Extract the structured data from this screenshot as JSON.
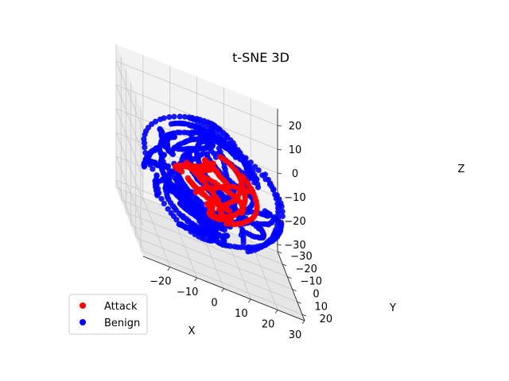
{
  "chart_data": {
    "type": "scatter",
    "projection": "3d",
    "title": "t-SNE 3D",
    "xlabel": "X",
    "ylabel": "Y",
    "zlabel": "Z",
    "xlim": [
      -30,
      30
    ],
    "ylim": [
      -30,
      25
    ],
    "zlim": [
      -33,
      27
    ],
    "xticks": [
      -20,
      -10,
      0,
      10,
      20,
      30
    ],
    "yticks": [
      -30,
      -20,
      -10,
      0,
      10,
      20
    ],
    "zticks": [
      -30,
      -20,
      -10,
      0,
      10,
      20
    ],
    "grid": true,
    "legend_position": "lower-left",
    "series": [
      {
        "name": "Benign",
        "color": "#0000ff",
        "count": 1400,
        "seed": 7,
        "shell_radius": 27,
        "core_radius": 22
      },
      {
        "name": "Attack",
        "color": "#ff0000",
        "count": 420,
        "seed": 13,
        "shell_radius": 24,
        "core_radius": 17
      }
    ],
    "legend_order": [
      "Attack",
      "Benign"
    ]
  }
}
